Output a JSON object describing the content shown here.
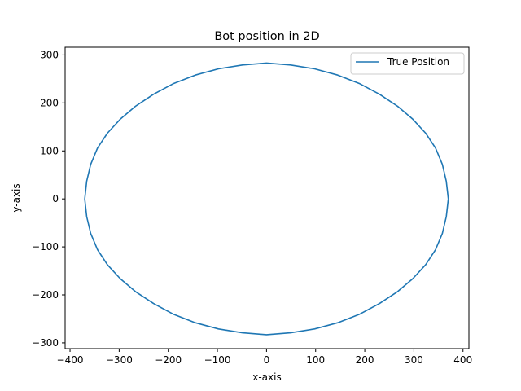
{
  "chart_data": {
    "type": "line",
    "title": "Bot position in 2D",
    "xlabel": "x-axis",
    "ylabel": "y-axis",
    "xlim": [
      -410,
      412
    ],
    "ylim": [
      -312,
      316
    ],
    "xticks": [
      -400,
      -300,
      -200,
      -100,
      0,
      100,
      200,
      300,
      400
    ],
    "yticks": [
      -300,
      -200,
      -100,
      0,
      100,
      200,
      300
    ],
    "grid": false,
    "legend_position": "top-right",
    "series": [
      {
        "name": "True Position",
        "color": "#1f77b4",
        "x": [
          370,
          366,
          358,
          344,
          324,
          298,
          267,
          230,
          190,
          145,
          98,
          49,
          0,
          -49,
          -98,
          -145,
          -190,
          -230,
          -267,
          -298,
          -324,
          -344,
          -358,
          -366,
          -370,
          -366,
          -358,
          -344,
          -324,
          -298,
          -267,
          -230,
          -190,
          -145,
          -98,
          -49,
          0,
          49,
          98,
          145,
          190,
          230,
          267,
          298,
          324,
          344,
          358,
          366,
          370
        ],
        "y": [
          0,
          37,
          72,
          106,
          137,
          166,
          193,
          218,
          240,
          258,
          271,
          279,
          283,
          279,
          271,
          258,
          240,
          218,
          193,
          166,
          137,
          106,
          72,
          37,
          0,
          -37,
          -72,
          -106,
          -137,
          -166,
          -193,
          -218,
          -240,
          -258,
          -271,
          -279,
          -283,
          -279,
          -271,
          -258,
          -240,
          -218,
          -193,
          -166,
          -137,
          -106,
          -72,
          -37,
          0
        ]
      }
    ]
  }
}
